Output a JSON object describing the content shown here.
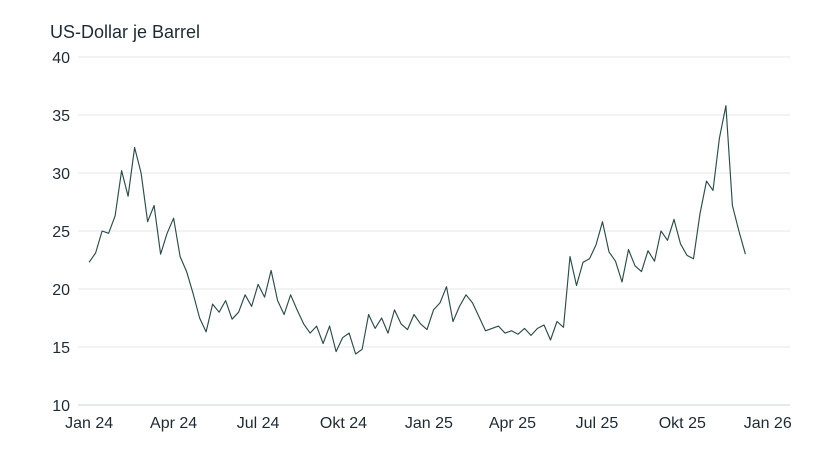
{
  "chart_data": {
    "type": "line",
    "title": "",
    "xlabel": "",
    "ylabel": "US-Dollar je Barrel",
    "ylim": [
      10,
      40
    ],
    "yticks": [
      10,
      15,
      20,
      25,
      30,
      35,
      40
    ],
    "xlim": [
      "2023-12-20",
      "2026-01-25"
    ],
    "xticks": [
      {
        "label": "Jan 24",
        "date": "2024-01-01"
      },
      {
        "label": "Apr 24",
        "date": "2024-04-01"
      },
      {
        "label": "Jul 24",
        "date": "2024-07-01"
      },
      {
        "label": "Okt 24",
        "date": "2024-10-01"
      },
      {
        "label": "Jan 25",
        "date": "2025-01-01"
      },
      {
        "label": "Apr 25",
        "date": "2025-04-01"
      },
      {
        "label": "Jul 25",
        "date": "2025-07-01"
      },
      {
        "label": "Okt 25",
        "date": "2025-10-01"
      },
      {
        "label": "Jan 26",
        "date": "2026-01-01"
      }
    ],
    "grid": "horizontal",
    "line_color": "#2f4a4a",
    "series": [
      {
        "x": [
          "2024-01-01",
          "2024-01-08",
          "2024-01-15",
          "2024-01-22",
          "2024-01-29",
          "2024-02-05",
          "2024-02-12",
          "2024-02-19",
          "2024-02-26",
          "2024-03-04",
          "2024-03-11",
          "2024-03-18",
          "2024-03-25",
          "2024-04-01",
          "2024-04-08",
          "2024-04-15",
          "2024-04-22",
          "2024-04-29",
          "2024-05-06",
          "2024-05-13",
          "2024-05-20",
          "2024-05-27",
          "2024-06-03",
          "2024-06-10",
          "2024-06-17",
          "2024-06-24",
          "2024-07-01",
          "2024-07-08",
          "2024-07-15",
          "2024-07-22",
          "2024-07-29",
          "2024-08-05",
          "2024-08-12",
          "2024-08-19",
          "2024-08-26",
          "2024-09-02",
          "2024-09-09",
          "2024-09-16",
          "2024-09-23",
          "2024-09-30",
          "2024-10-07",
          "2024-10-14",
          "2024-10-21",
          "2024-10-28",
          "2024-11-04",
          "2024-11-11",
          "2024-11-18",
          "2024-11-25",
          "2024-12-02",
          "2024-12-09",
          "2024-12-16",
          "2024-12-23",
          "2024-12-30",
          "2025-01-06",
          "2025-01-13",
          "2025-01-20",
          "2025-01-27",
          "2025-02-03",
          "2025-02-10",
          "2025-02-17",
          "2025-02-24",
          "2025-03-03",
          "2025-03-10",
          "2025-03-17",
          "2025-03-24",
          "2025-03-31",
          "2025-04-07",
          "2025-04-14",
          "2025-04-21",
          "2025-04-28",
          "2025-05-05",
          "2025-05-12",
          "2025-05-19",
          "2025-05-26",
          "2025-06-02",
          "2025-06-09",
          "2025-06-16",
          "2025-06-23",
          "2025-06-30",
          "2025-07-07",
          "2025-07-14",
          "2025-07-21",
          "2025-07-28",
          "2025-08-04",
          "2025-08-11",
          "2025-08-18",
          "2025-08-25",
          "2025-09-01",
          "2025-09-08",
          "2025-09-15",
          "2025-09-22",
          "2025-09-29",
          "2025-10-06",
          "2025-10-13",
          "2025-10-20",
          "2025-10-27",
          "2025-11-03",
          "2025-11-10",
          "2025-11-17",
          "2025-11-24",
          "2025-12-01",
          "2025-12-08"
        ],
        "values": [
          22.3,
          23.1,
          25.0,
          24.8,
          26.3,
          30.2,
          28.0,
          32.2,
          30.0,
          25.8,
          27.2,
          23.0,
          24.8,
          26.1,
          22.8,
          21.5,
          19.6,
          17.5,
          16.3,
          18.7,
          18.0,
          19.0,
          17.4,
          18.0,
          19.5,
          18.5,
          20.4,
          19.3,
          21.6,
          19.0,
          17.8,
          19.5,
          18.2,
          17.0,
          16.2,
          16.8,
          15.3,
          16.8,
          14.6,
          15.8,
          16.2,
          14.4,
          14.8,
          17.8,
          16.6,
          17.5,
          16.2,
          18.2,
          17.0,
          16.5,
          17.8,
          17.0,
          16.5,
          18.2,
          18.8,
          20.2,
          17.2,
          18.5,
          19.5,
          18.8,
          17.6,
          16.4,
          16.6,
          16.8,
          16.2,
          16.4,
          16.1,
          16.6,
          16.0,
          16.6,
          16.9,
          15.6,
          17.2,
          16.7,
          22.8,
          20.3,
          22.3,
          22.6,
          23.8,
          25.8,
          23.2,
          22.4,
          20.6,
          23.4,
          22.0,
          21.5,
          23.3,
          22.4,
          25.0,
          24.2,
          26.0,
          23.9,
          22.9,
          22.6,
          26.5,
          29.3,
          28.5,
          33.0,
          35.8,
          27.2,
          25.0,
          23.0
        ]
      }
    ]
  }
}
